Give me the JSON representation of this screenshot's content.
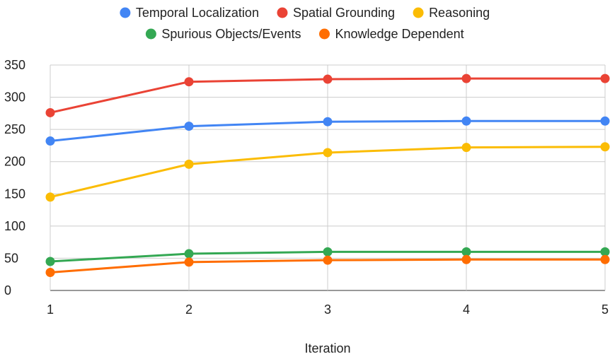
{
  "chart_data": {
    "type": "line",
    "title": "",
    "xlabel": "Iteration",
    "ylabel": "",
    "categories": [
      "1",
      "2",
      "3",
      "4",
      "5"
    ],
    "ylim": [
      0,
      350
    ],
    "yticks": [
      "0",
      "50",
      "100",
      "150",
      "200",
      "250",
      "300",
      "350"
    ],
    "grid": true,
    "legend_position": "top",
    "series": [
      {
        "name": "Temporal Localization",
        "color": "#4285f4",
        "values": [
          232,
          255,
          262,
          263,
          263
        ]
      },
      {
        "name": "Spatial Grounding",
        "color": "#ea4335",
        "values": [
          276,
          324,
          328,
          329,
          329
        ]
      },
      {
        "name": "Reasoning",
        "color": "#fbbc04",
        "values": [
          145,
          196,
          214,
          222,
          223
        ]
      },
      {
        "name": "Spurious Objects/Events",
        "color": "#34a853",
        "values": [
          45,
          57,
          60,
          60,
          60
        ]
      },
      {
        "name": "Knowledge Dependent",
        "color": "#ff6d01",
        "values": [
          28,
          44,
          47,
          48,
          48
        ]
      }
    ]
  }
}
